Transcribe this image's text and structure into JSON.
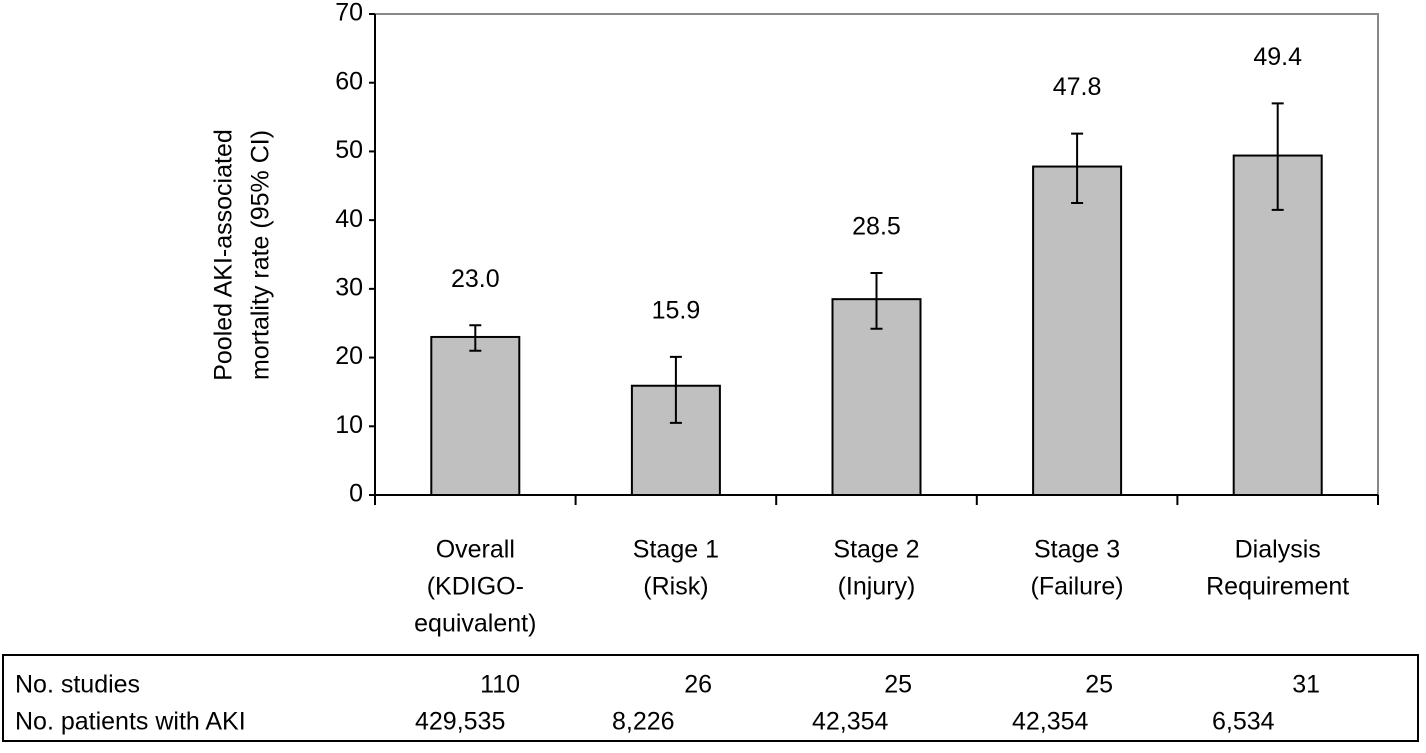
{
  "chart_data": {
    "type": "bar",
    "y_label": [
      "Pooled AKI-associated",
      "mortality rate (95% CI)"
    ],
    "categories": [
      [
        "Overall",
        "(KDIGO-",
        "equivalent)"
      ],
      [
        "Stage 1",
        "(Risk)"
      ],
      [
        "Stage 2",
        "(Injury)"
      ],
      [
        "Stage 3",
        "(Failure)"
      ],
      [
        "Dialysis",
        "Requirement"
      ]
    ],
    "values": [
      23.0,
      15.9,
      28.5,
      47.8,
      49.4
    ],
    "value_labels": [
      "23.0",
      "15.9",
      "28.5",
      "47.8",
      "49.4"
    ],
    "ci_low": [
      21,
      10.5,
      24.2,
      42.5,
      41.5
    ],
    "ci_high": [
      24.7,
      20.1,
      32.3,
      52.6,
      57
    ],
    "color": "#c0c0c0",
    "ylim": [
      0,
      70
    ],
    "yticks": [
      0,
      10,
      20,
      30,
      40,
      50,
      60,
      70
    ],
    "grid": false
  },
  "table": {
    "rows": [
      [
        "No. studies",
        "110",
        "26",
        "25",
        "25",
        "31"
      ],
      [
        "No. patients with AKI",
        "429,535",
        "8,226",
        "42,354",
        "42,354",
        "6,534"
      ]
    ]
  }
}
